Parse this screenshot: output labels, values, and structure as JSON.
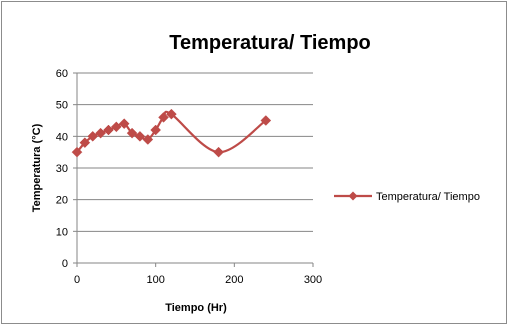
{
  "colors": {
    "series": "#be4b48",
    "grid": "#868686",
    "axis": "#868686",
    "frame": "#8c8c8c"
  },
  "chart_data": {
    "type": "line",
    "title": "Temperatura/ Tiempo",
    "xlabel": "Tiempo (Hr)",
    "ylabel": "Temperatura (°C)",
    "xlim": [
      0,
      300
    ],
    "ylim": [
      0,
      60
    ],
    "x_ticks": [
      "0",
      "100",
      "200",
      "300"
    ],
    "y_ticks": [
      "0",
      "10",
      "20",
      "30",
      "40",
      "50",
      "60"
    ],
    "grid": "horizontal",
    "smooth": true,
    "marker": "diamond",
    "legend_position": "right",
    "series": [
      {
        "name": "Temperatura/ Tiempo",
        "x": [
          0,
          10,
          20,
          30,
          40,
          50,
          60,
          70,
          80,
          90,
          100,
          110,
          120,
          180,
          240
        ],
        "y": [
          35,
          38,
          40,
          41,
          42,
          43,
          44,
          41,
          40,
          39,
          42,
          46,
          47,
          35,
          45
        ]
      }
    ]
  }
}
